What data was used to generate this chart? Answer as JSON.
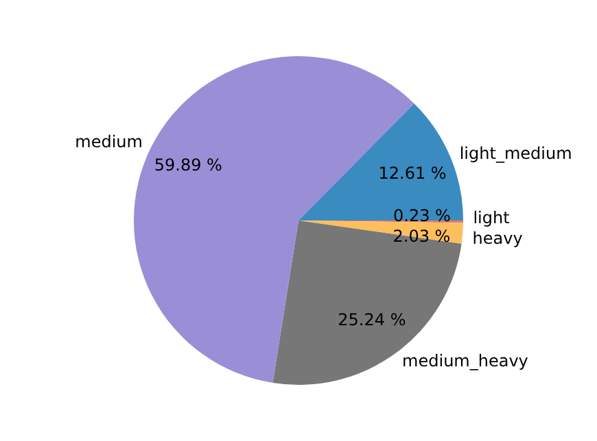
{
  "chart_data": {
    "type": "pie",
    "categories": [
      "light",
      "heavy",
      "medium_heavy",
      "medium",
      "light_medium"
    ],
    "values": [
      0.23,
      2.03,
      25.24,
      59.89,
      12.61
    ],
    "colors": [
      "#e5786c",
      "#fdbf5e",
      "#777777",
      "#9a8fd6",
      "#3a8bc0"
    ],
    "value_labels": [
      "0.23 %",
      "2.03 %",
      "25.24 %",
      "59.89 %",
      "12.61 %"
    ],
    "legend": false
  }
}
